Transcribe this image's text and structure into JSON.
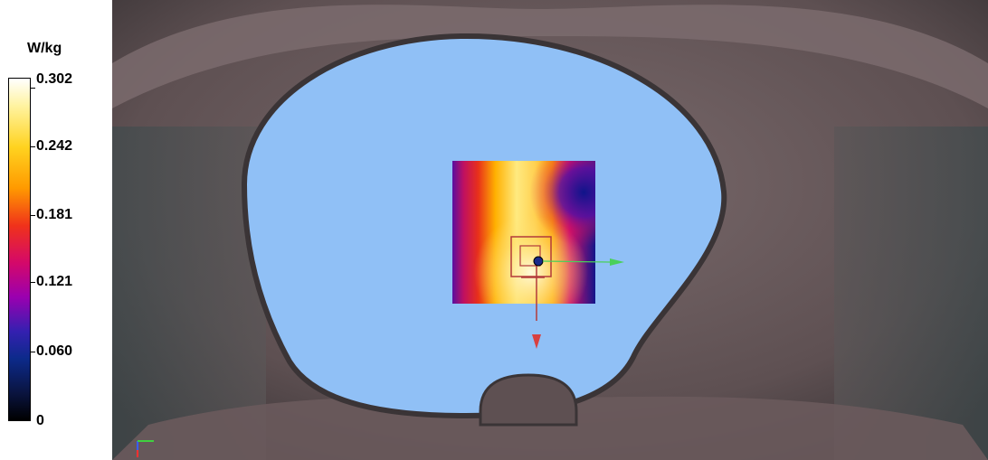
{
  "colorbar": {
    "unit": "W/kg",
    "labels": [
      "0.302",
      "0.242",
      "0.181",
      "0.121",
      "0.060",
      "0"
    ],
    "colors": [
      "#ffffff",
      "#ffd320",
      "#ff7a00",
      "#e8101e",
      "#b0009a",
      "#3a1a9a",
      "#10145a",
      "#000000"
    ]
  },
  "viewport": {
    "phantom_color": "#90c0f6",
    "body_color": "#6e5e60",
    "heatmap_colors": [
      "#5a0fa0",
      "#e0182a",
      "#ffd040",
      "#fff8d0",
      "#ffb800",
      "#12158a"
    ],
    "icons": [
      "probe-crosshair-icon",
      "green-axis-arrow-icon",
      "red-axis-arrow-icon",
      "axis-triad-icon"
    ]
  }
}
